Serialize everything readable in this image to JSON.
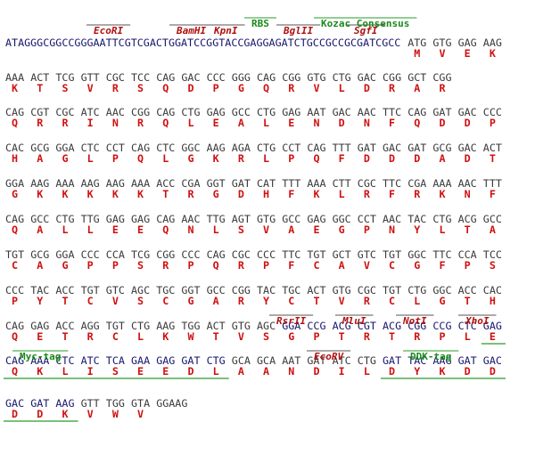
{
  "header_sequence": "ATAGGGCGGCCGGGAATTCGTCGACTGGATCCGGTACCGAGGAGATCTGCCGCCGCGATCGCC",
  "sites": [
    "EcoRI",
    "BamHI",
    "KpnI",
    "BglII",
    "SgfI",
    "RsrII",
    "MluI",
    "NotI",
    "XhoI",
    "EcoRV"
  ],
  "features": [
    "RBS",
    "Kozac Consensus",
    "Myc-tag",
    "DDK-tag"
  ],
  "rows": [
    {
      "codons": [
        "ATG",
        "GTG",
        "GAG",
        "AAG"
      ],
      "amino_acids": [
        "M",
        "V",
        "E",
        "K"
      ]
    },
    {
      "codons": [
        "AAA",
        "ACT",
        "TCG",
        "GTT",
        "CGC",
        "TCC",
        "CAG",
        "GAC",
        "CCC",
        "GGG",
        "CAG",
        "CGG",
        "GTG",
        "CTG",
        "GAC",
        "CGG",
        "GCT",
        "CGG"
      ],
      "amino_acids": [
        "K",
        "T",
        "S",
        "V",
        "R",
        "S",
        "Q",
        "D",
        "P",
        "G",
        "Q",
        "R",
        "V",
        "L",
        "D",
        "R",
        "A",
        "R"
      ]
    },
    {
      "codons": [
        "CAG",
        "CGT",
        "CGC",
        "ATC",
        "AAC",
        "CGG",
        "CAG",
        "CTG",
        "GAG",
        "GCC",
        "CTG",
        "GAG",
        "AAT",
        "GAC",
        "AAC",
        "TTC",
        "CAG",
        "GAT",
        "GAC",
        "CCC"
      ],
      "amino_acids": [
        "Q",
        "R",
        "R",
        "I",
        "N",
        "R",
        "Q",
        "L",
        "E",
        "A",
        "L",
        "E",
        "N",
        "D",
        "N",
        "F",
        "Q",
        "D",
        "D",
        "P"
      ]
    },
    {
      "codons": [
        "CAC",
        "GCG",
        "GGA",
        "CTC",
        "CCT",
        "CAG",
        "CTC",
        "GGC",
        "AAG",
        "AGA",
        "CTG",
        "CCT",
        "CAG",
        "TTT",
        "GAT",
        "GAC",
        "GAT",
        "GCG",
        "GAC",
        "ACT"
      ],
      "amino_acids": [
        "H",
        "A",
        "G",
        "L",
        "P",
        "Q",
        "L",
        "G",
        "K",
        "R",
        "L",
        "P",
        "Q",
        "F",
        "D",
        "D",
        "D",
        "A",
        "D",
        "T"
      ]
    },
    {
      "codons": [
        "GGA",
        "AAG",
        "AAA",
        "AAG",
        "AAG",
        "AAA",
        "ACC",
        "CGA",
        "GGT",
        "GAT",
        "CAT",
        "TTT",
        "AAA",
        "CTT",
        "CGC",
        "TTC",
        "CGA",
        "AAA",
        "AAC",
        "TTT"
      ],
      "amino_acids": [
        "G",
        "K",
        "K",
        "K",
        "K",
        "K",
        "T",
        "R",
        "G",
        "D",
        "H",
        "F",
        "K",
        "L",
        "R",
        "F",
        "R",
        "K",
        "N",
        "F"
      ]
    },
    {
      "codons": [
        "CAG",
        "GCC",
        "CTG",
        "TTG",
        "GAG",
        "GAG",
        "CAG",
        "AAC",
        "TTG",
        "AGT",
        "GTG",
        "GCC",
        "GAG",
        "GGC",
        "CCT",
        "AAC",
        "TAC",
        "CTG",
        "ACG",
        "GCC"
      ],
      "amino_acids": [
        "Q",
        "A",
        "L",
        "L",
        "E",
        "E",
        "Q",
        "N",
        "L",
        "S",
        "V",
        "A",
        "E",
        "G",
        "P",
        "N",
        "Y",
        "L",
        "T",
        "A"
      ]
    },
    {
      "codons": [
        "TGT",
        "GCG",
        "GGA",
        "CCC",
        "CCA",
        "TCG",
        "CGG",
        "CCC",
        "CAG",
        "CGC",
        "CCC",
        "TTC",
        "TGT",
        "GCT",
        "GTC",
        "TGT",
        "GGC",
        "TTC",
        "CCA",
        "TCC"
      ],
      "amino_acids": [
        "C",
        "A",
        "G",
        "P",
        "P",
        "S",
        "R",
        "P",
        "Q",
        "R",
        "P",
        "F",
        "C",
        "A",
        "V",
        "C",
        "G",
        "F",
        "P",
        "S"
      ]
    },
    {
      "codons": [
        "CCC",
        "TAC",
        "ACC",
        "TGT",
        "GTC",
        "AGC",
        "TGC",
        "GGT",
        "GCC",
        "CGG",
        "TAC",
        "TGC",
        "ACT",
        "GTG",
        "CGC",
        "TGT",
        "CTG",
        "GGC",
        "ACC",
        "CAC"
      ],
      "amino_acids": [
        "P",
        "Y",
        "T",
        "C",
        "V",
        "S",
        "C",
        "G",
        "A",
        "R",
        "Y",
        "C",
        "T",
        "V",
        "R",
        "C",
        "L",
        "G",
        "T",
        "H"
      ]
    },
    {
      "codons": [
        "CAG",
        "GAG",
        "ACC",
        "AGG",
        "TGT",
        "CTG",
        "AAG",
        "TGG",
        "ACT",
        "GTG",
        "AGC",
        "GGA",
        "CCG",
        "ACG",
        "CGT",
        "ACG",
        "CGG",
        "CCG",
        "CTC",
        "GAG"
      ],
      "amino_acids": [
        "Q",
        "E",
        "T",
        "R",
        "C",
        "L",
        "K",
        "W",
        "T",
        "V",
        "S",
        "G",
        "P",
        "T",
        "R",
        "T",
        "R",
        "P",
        "L",
        "E"
      ]
    },
    {
      "codons": [
        "CAG",
        "AAA",
        "CTC",
        "ATC",
        "TCA",
        "GAA",
        "GAG",
        "GAT",
        "CTG",
        "GCA",
        "GCA",
        "AAT",
        "GAT",
        "ATC",
        "CTG",
        "GAT",
        "TAC",
        "AAG",
        "GAT",
        "GAC"
      ],
      "amino_acids": [
        "Q",
        "K",
        "L",
        "I",
        "S",
        "E",
        "E",
        "D",
        "L",
        "A",
        "A",
        "N",
        "D",
        "I",
        "L",
        "D",
        "Y",
        "K",
        "D",
        "D"
      ]
    },
    {
      "codons": [
        "GAC",
        "GAT",
        "AAG",
        "GTT",
        "TGG",
        "GTA",
        "GGAAG"
      ],
      "amino_acids": [
        "D",
        "D",
        "K",
        "V",
        "W",
        "V"
      ]
    }
  ]
}
